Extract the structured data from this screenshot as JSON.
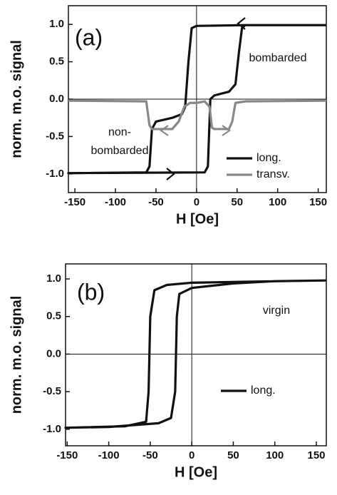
{
  "chart_data": [
    {
      "type": "line",
      "panel_label": "(a)",
      "xlabel": "H [Oe]",
      "ylabel": "norm. m.o. signal",
      "annotations": [
        "bombarded",
        "non-",
        "bombarded"
      ],
      "xlim": [
        -158,
        160
      ],
      "ylim": [
        -1.25,
        1.25
      ],
      "xticks": [
        -150,
        -100,
        -50,
        0,
        50,
        100,
        150
      ],
      "yticks": [
        {
          "value": -1,
          "label": "-1.0"
        },
        {
          "value": -0.5,
          "label": "-0.5"
        },
        {
          "value": 0,
          "label": "0.0"
        },
        {
          "value": 0.5,
          "label": "0.5"
        },
        {
          "value": 1,
          "label": "1.0"
        }
      ],
      "legend": "lower right",
      "series": [
        {
          "name": "long.",
          "color": "#111111",
          "x": [
            160,
            60,
            0,
            -6,
            -10,
            -14,
            -18,
            -30,
            -50,
            -55,
            -58,
            -62,
            -158,
            10,
            14,
            17,
            22,
            40,
            48,
            52,
            56,
            60,
            160
          ],
          "values": [
            0.99,
            0.99,
            0.98,
            0.95,
            0.5,
            -0.1,
            -0.2,
            -0.25,
            -0.3,
            -0.4,
            -0.9,
            -0.98,
            -0.99,
            -0.98,
            -0.9,
            0,
            0.05,
            0.1,
            0.2,
            0.6,
            0.95,
            0.99,
            0.99
          ]
        },
        {
          "name": "transv.",
          "color": "#888888",
          "x": [
            -158,
            -62,
            -58,
            -55,
            -30,
            -22,
            -15,
            -8,
            0,
            10,
            16,
            19,
            22,
            40,
            44,
            48,
            60,
            160
          ],
          "values": [
            -0.02,
            -0.03,
            -0.35,
            -0.4,
            -0.4,
            -0.3,
            -0.1,
            -0.05,
            -0.05,
            -0.03,
            -0.1,
            -0.38,
            -0.4,
            -0.4,
            -0.3,
            -0.05,
            -0.03,
            -0.02
          ]
        }
      ]
    },
    {
      "type": "line",
      "panel_label": "(b)",
      "xlabel": "H [Oe]",
      "ylabel": "norm. m.o. signal",
      "annotations": [
        "virgin"
      ],
      "xlim": [
        -152,
        162
      ],
      "ylim": [
        -1.22,
        1.2
      ],
      "xticks": [
        -150,
        -100,
        -50,
        0,
        50,
        100,
        150
      ],
      "yticks": [
        {
          "value": -1,
          "label": "-1.0"
        },
        {
          "value": -0.5,
          "label": "-0.5"
        },
        {
          "value": 0,
          "label": "0.0"
        },
        {
          "value": 0.5,
          "label": "0.5"
        },
        {
          "value": 1,
          "label": "1.0"
        }
      ],
      "legend": "lower right",
      "series": [
        {
          "name": "long.",
          "color": "#111111",
          "x": [
            162,
            100,
            0,
            -30,
            -45,
            -50,
            -52,
            -55,
            -80,
            -152,
            -100,
            -40,
            -25,
            -20,
            -18,
            -15,
            0,
            50,
            100,
            162
          ],
          "values": [
            0.98,
            0.97,
            0.95,
            0.92,
            0.85,
            0.5,
            -0.5,
            -0.9,
            -0.96,
            -0.98,
            -0.97,
            -0.92,
            -0.85,
            -0.5,
            0.5,
            0.8,
            0.88,
            0.94,
            0.97,
            0.98
          ]
        }
      ]
    }
  ]
}
